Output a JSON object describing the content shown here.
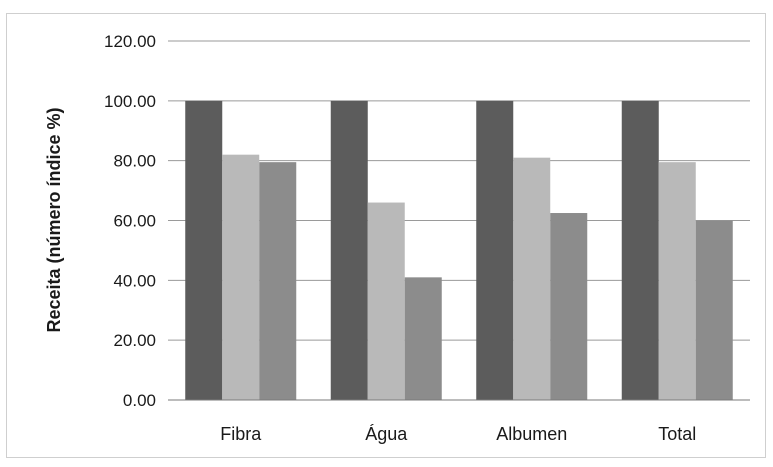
{
  "chart_data": {
    "type": "bar",
    "title": "",
    "xlabel": "",
    "ylabel": "Receita (número índice %)",
    "categories": [
      "Fibra",
      "Água",
      "Albumen",
      "Total"
    ],
    "series": [
      {
        "values": [
          100,
          100,
          100,
          100
        ],
        "color": "#5c5c5c"
      },
      {
        "values": [
          82,
          66,
          81,
          79.5
        ],
        "color": "#b9b9b9"
      },
      {
        "values": [
          79.5,
          41,
          62.5,
          60
        ],
        "color": "#8c8c8c"
      }
    ],
    "ylim": [
      0,
      120
    ],
    "yticks": [
      "0.00",
      "20.00",
      "40.00",
      "60.00",
      "80.00",
      "100.00",
      "120.00"
    ],
    "ytick_values": [
      0,
      20,
      40,
      60,
      80,
      100,
      120
    ],
    "grid": true,
    "legend": "none",
    "colors": {
      "gridline": "#9a9a9a",
      "frame": "#bfbfbf"
    }
  }
}
